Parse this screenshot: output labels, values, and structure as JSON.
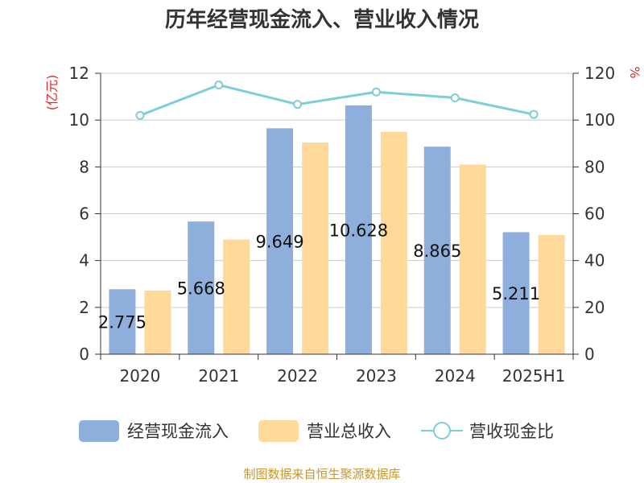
{
  "chart_data": {
    "type": "bar",
    "title": "历年经营现金流入、营业收入情况",
    "y_left_unit": "(亿元)",
    "y_right_unit": "%",
    "categories": [
      "2020",
      "2021",
      "2022",
      "2023",
      "2024",
      "2025H1"
    ],
    "y_left_ticks": [
      "0",
      "2",
      "4",
      "6",
      "8",
      "10",
      "12"
    ],
    "y_right_ticks": [
      "0",
      "20",
      "40",
      "60",
      "80",
      "100",
      "120"
    ],
    "ylim_left": [
      0,
      12
    ],
    "ylim_right": [
      0,
      120
    ],
    "grid": true,
    "legend_position": "bottom",
    "series": [
      {
        "name": "经营现金流入",
        "type": "bar",
        "axis": "left",
        "color": "#8eaedb",
        "values": [
          2.775,
          5.668,
          9.649,
          10.628,
          8.865,
          5.211
        ],
        "labels": [
          "2.775",
          "5.668",
          "9.649",
          "10.628",
          "8.865",
          "5.211"
        ]
      },
      {
        "name": "营业总收入",
        "type": "bar",
        "axis": "left",
        "color": "#ffd99a",
        "values": [
          2.72,
          4.9,
          9.04,
          9.5,
          8.1,
          5.09
        ]
      },
      {
        "name": "营收现金比",
        "type": "line",
        "axis": "right",
        "color": "#7dcfd6",
        "values": [
          102,
          115,
          106.7,
          112,
          109.5,
          102.4
        ]
      }
    ]
  },
  "footer": {
    "source": "制图数据来自恒生聚源数据库"
  }
}
